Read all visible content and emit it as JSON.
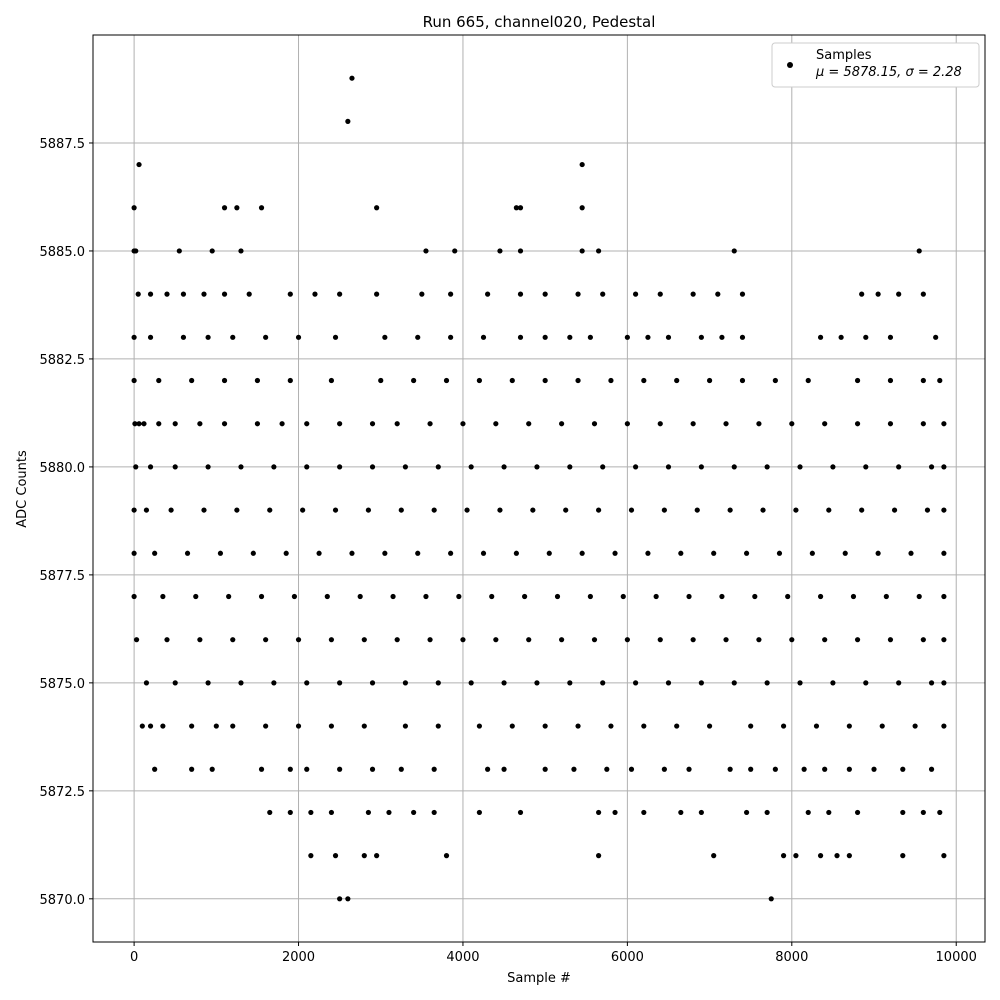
{
  "chart_data": {
    "type": "scatter",
    "title": "Run 665, channel020, Pedestal",
    "xlabel": "Sample #",
    "ylabel": "ADC Counts",
    "xlim": [
      -500,
      10350
    ],
    "ylim": [
      5869.0,
      5890.0
    ],
    "xticks": [
      0,
      2000,
      4000,
      6000,
      8000,
      10000
    ],
    "xtick_labels": [
      "0",
      "2000",
      "4000",
      "6000",
      "8000",
      "10000"
    ],
    "yticks": [
      5870.0,
      5872.5,
      5875.0,
      5877.5,
      5880.0,
      5882.5,
      5885.0,
      5887.5
    ],
    "ytick_labels": [
      "5870.0",
      "5872.5",
      "5875.0",
      "5877.5",
      "5880.0",
      "5882.5",
      "5885.0",
      "5887.5"
    ],
    "grid": true,
    "legend": {
      "position": "top-right",
      "label": "Samples",
      "stats": "μ = 5878.15, σ = 2.28"
    },
    "series": [
      {
        "name": "Samples",
        "color": "#000000",
        "x_range": [
          0,
          9850
        ],
        "levels": [
          {
            "y": 5881.0,
            "x": [
              10,
              60,
              120,
              300,
              500,
              800,
              1100,
              1500,
              1800,
              2100,
              2500,
              2900,
              3200,
              3600,
              4000,
              4400,
              4800,
              5200,
              5600,
              6000,
              6400,
              6800,
              7200,
              7600,
              8000,
              8400,
              8800,
              9200,
              9600,
              9850
            ]
          },
          {
            "y": 5880.0,
            "x": [
              20,
              200,
              500,
              900,
              1300,
              1700,
              2100,
              2500,
              2900,
              3300,
              3700,
              4100,
              4500,
              4900,
              5300,
              5700,
              6100,
              6500,
              6900,
              7300,
              7700,
              8100,
              8500,
              8900,
              9300,
              9700,
              9850
            ]
          },
          {
            "y": 5879.0,
            "x": [
              0,
              150,
              450,
              850,
              1250,
              1650,
              2050,
              2450,
              2850,
              3250,
              3650,
              4050,
              4450,
              4850,
              5250,
              5650,
              6050,
              6450,
              6850,
              7250,
              7650,
              8050,
              8450,
              8850,
              9250,
              9650,
              9850
            ]
          },
          {
            "y": 5878.0,
            "x": [
              0,
              250,
              650,
              1050,
              1450,
              1850,
              2250,
              2650,
              3050,
              3450,
              3850,
              4250,
              4650,
              5050,
              5450,
              5850,
              6250,
              6650,
              7050,
              7450,
              7850,
              8250,
              8650,
              9050,
              9450,
              9850
            ]
          },
          {
            "y": 5877.0,
            "x": [
              0,
              350,
              750,
              1150,
              1550,
              1950,
              2350,
              2750,
              3150,
              3550,
              3950,
              4350,
              4750,
              5150,
              5550,
              5950,
              6350,
              6750,
              7150,
              7550,
              7950,
              8350,
              8750,
              9150,
              9550,
              9850
            ]
          },
          {
            "y": 5876.0,
            "x": [
              30,
              400,
              800,
              1200,
              1600,
              2000,
              2400,
              2800,
              3200,
              3600,
              4000,
              4400,
              4800,
              5200,
              5600,
              6000,
              6400,
              6800,
              7200,
              7600,
              8000,
              8400,
              8800,
              9200,
              9600,
              9850
            ]
          },
          {
            "y": 5882.0,
            "x": [
              0,
              300,
              700,
              1100,
              1500,
              1900,
              2400,
              3000,
              3400,
              3800,
              4200,
              4600,
              5000,
              5400,
              5800,
              6200,
              6600,
              7000,
              7400,
              7800,
              8200,
              8800,
              9200,
              9600,
              9800
            ]
          },
          {
            "y": 5875.0,
            "x": [
              150,
              500,
              900,
              1300,
              1700,
              2100,
              2500,
              2900,
              3300,
              3700,
              4100,
              4500,
              4900,
              5300,
              5700,
              6100,
              6500,
              6900,
              7300,
              7700,
              8100,
              8500,
              8900,
              9300,
              9700,
              9850
            ]
          },
          {
            "y": 5883.0,
            "x": [
              0,
              200,
              600,
              900,
              1200,
              1600,
              2000,
              2450,
              3050,
              3450,
              3850,
              4250,
              4700,
              5000,
              5300,
              5550,
              6000,
              6250,
              6500,
              6900,
              7150,
              7400,
              8350,
              8600,
              8900,
              9200,
              9750
            ]
          },
          {
            "y": 5874.0,
            "x": [
              100,
              200,
              350,
              700,
              1000,
              1200,
              1600,
              2000,
              2400,
              2800,
              3300,
              3700,
              4200,
              4600,
              5000,
              5400,
              5800,
              6200,
              6600,
              7000,
              7500,
              7900,
              8300,
              8700,
              9100,
              9500,
              9850
            ]
          },
          {
            "y": 5884.0,
            "x": [
              50,
              200,
              400,
              600,
              850,
              1100,
              1400,
              1900,
              2200,
              2500,
              2950,
              3500,
              3850,
              4300,
              4700,
              5000,
              5400,
              5700,
              6100,
              6400,
              6800,
              7100,
              7400,
              8850,
              9050,
              9300,
              9600
            ]
          },
          {
            "y": 5873.0,
            "x": [
              250,
              700,
              950,
              1550,
              1900,
              2100,
              2500,
              2900,
              3250,
              3650,
              4300,
              4500,
              5000,
              5350,
              5750,
              6050,
              6450,
              6750,
              7250,
              7500,
              7800,
              8150,
              8400,
              8700,
              9000,
              9350,
              9700
            ]
          },
          {
            "y": 5872.0,
            "x": [
              1650,
              1900,
              2150,
              2400,
              2850,
              3100,
              3400,
              3650,
              4200,
              4700,
              5650,
              5850,
              6200,
              6650,
              6900,
              7450,
              7700,
              8200,
              8450,
              8800,
              9350,
              9600,
              9800
            ]
          },
          {
            "y": 5885.0,
            "x": [
              0,
              20,
              550,
              950,
              1300,
              3550,
              3900,
              4450,
              4700,
              5450,
              5650,
              7300,
              9550
            ]
          },
          {
            "y": 5871.0,
            "x": [
              2150,
              2450,
              2800,
              2950,
              3800,
              5650,
              7050,
              7900,
              8050,
              8350,
              8550,
              8700,
              9350,
              9850
            ]
          },
          {
            "y": 5886.0,
            "x": [
              0,
              1100,
              1250,
              1550,
              2950,
              4650,
              4700,
              5450
            ]
          },
          {
            "y": 5887.0,
            "x": [
              60,
              5450
            ]
          },
          {
            "y": 5870.0,
            "x": [
              2500,
              2600,
              7750
            ]
          },
          {
            "y": 5888.0,
            "x": [
              2600
            ]
          },
          {
            "y": 5889.0,
            "x": [
              2650
            ]
          }
        ]
      }
    ]
  }
}
